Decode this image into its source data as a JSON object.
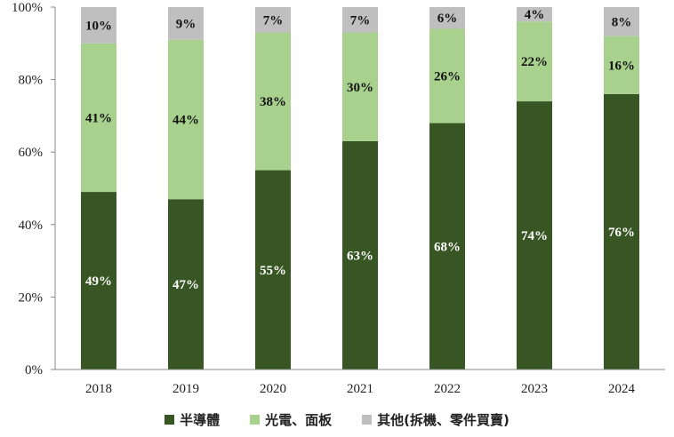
{
  "chart_data": {
    "type": "bar",
    "stacked": true,
    "percent": true,
    "categories": [
      "2018",
      "2019",
      "2020",
      "2021",
      "2022",
      "2023",
      "2024"
    ],
    "series": [
      {
        "name": "半導體",
        "color": "#375623",
        "label_color": "#ffffff",
        "values": [
          49,
          47,
          55,
          63,
          68,
          74,
          76
        ]
      },
      {
        "name": "光電、面板",
        "color": "#a9d18e",
        "label_color": "#111111",
        "values": [
          41,
          44,
          38,
          30,
          26,
          22,
          16
        ]
      },
      {
        "name": "其他(拆機、零件買賣)",
        "color": "#bfbfbf",
        "label_color": "#111111",
        "values": [
          10,
          9,
          7,
          7,
          6,
          4,
          8
        ]
      }
    ],
    "data_labels": [
      [
        "49%",
        "47%",
        "55%",
        "63%",
        "68%",
        "74%",
        "76%"
      ],
      [
        "41%",
        "44%",
        "38%",
        "30%",
        "26%",
        "22%",
        "16%"
      ],
      [
        "10%",
        "9%",
        "7%",
        "7%",
        "6%",
        "4%",
        "8%"
      ]
    ],
    "yticks": [
      "0%",
      "20%",
      "40%",
      "60%",
      "80%",
      "100%"
    ],
    "ylim": [
      0,
      100
    ],
    "grid": false,
    "legend_position": "bottom",
    "title": "",
    "xlabel": "",
    "ylabel": ""
  }
}
